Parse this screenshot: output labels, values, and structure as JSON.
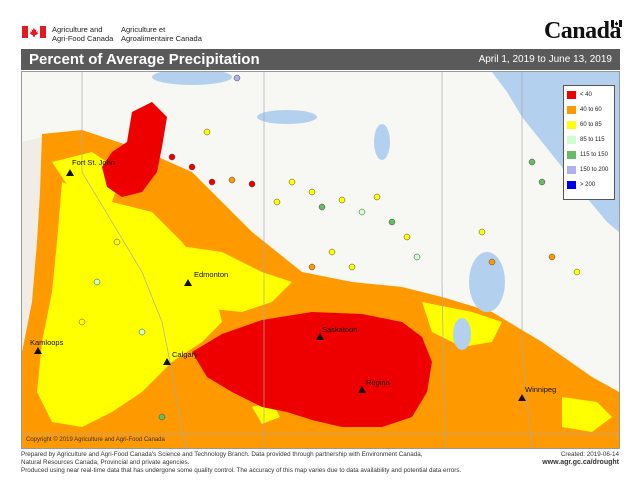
{
  "header": {
    "org_en_line1": "Agriculture and",
    "org_en_line2": "Agri-Food Canada",
    "org_fr_line1": "Agriculture et",
    "org_fr_line2": "Agroalimentaire Canada",
    "wordmark": "Canada"
  },
  "titlebar": {
    "title": "Percent of Average Precipitation",
    "date_range": "April 1, 2019 to June 13, 2019"
  },
  "legend": {
    "items": [
      {
        "label": "< 40",
        "color": "#ee0000"
      },
      {
        "label": "40 to 60",
        "color": "#ff9900"
      },
      {
        "label": "60 to 85",
        "color": "#ffff00"
      },
      {
        "label": "85 to 115",
        "color": "#ccffcc"
      },
      {
        "label": "115 to 150",
        "color": "#66bb66"
      },
      {
        "label": "150 to 200",
        "color": "#b0b0ee"
      },
      {
        "label": "> 200",
        "color": "#0000ee"
      }
    ]
  },
  "cities": [
    {
      "name": "Fort St. John"
    },
    {
      "name": "Edmonton"
    },
    {
      "name": "Kamloops"
    },
    {
      "name": "Calgary"
    },
    {
      "name": "Saskatoon"
    },
    {
      "name": "Regina"
    },
    {
      "name": "Winnipeg"
    }
  ],
  "copyright": "Copyright © 2019 Agriculture and Agri-Food Canada",
  "footer": {
    "line1": "Prepared by Agriculture and Agri-Food Canada's Science and Technology Branch. Data provided through partnership with Environment Canada,",
    "line2": "Natural Resources Canada, Provincial and private agencies.",
    "line3": "Produced using near real-time data that has undergone some quality control. The accuracy of this map varies due to data availability and potential data errors.",
    "created": "Created: 2019-06-14",
    "url": "www.agr.gc.ca/drought"
  },
  "colors": {
    "lt40": "#ee0000",
    "40to60": "#ff9900",
    "60to85": "#ffff00",
    "85to115": "#ccffcc",
    "115to150": "#66bb66",
    "150to200": "#b0b0ee",
    "gt200": "#0000ee",
    "water": "#b3d1ee",
    "title_bg": "#5a5a5a"
  }
}
